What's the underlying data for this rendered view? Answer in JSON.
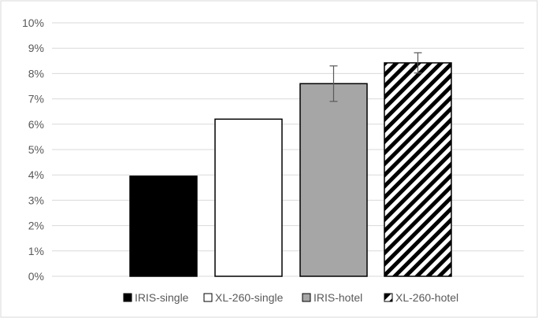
{
  "chart_data": {
    "type": "bar",
    "title": "",
    "xlabel": "",
    "ylabel": "",
    "ylim": [
      0,
      0.1
    ],
    "y_ticks": [
      0,
      0.01,
      0.02,
      0.03,
      0.04,
      0.05,
      0.06,
      0.07,
      0.08,
      0.09,
      0.1
    ],
    "y_tick_labels": [
      "0%",
      "1%",
      "2%",
      "3%",
      "4%",
      "5%",
      "6%",
      "7%",
      "8%",
      "9%",
      "10%"
    ],
    "grid": true,
    "legend_position": "bottom",
    "series": [
      {
        "name": "IRIS-single",
        "value": 0.0395,
        "error": null,
        "fill": "#000000",
        "pattern": "solid"
      },
      {
        "name": "XL-260-single",
        "value": 0.062,
        "error": null,
        "fill": "#ffffff",
        "pattern": "solid"
      },
      {
        "name": "IRIS-hotel",
        "value": 0.076,
        "error": 0.007,
        "fill": "#a6a6a6",
        "pattern": "solid"
      },
      {
        "name": "XL-260-hotel",
        "value": 0.0842,
        "error": 0.004,
        "fill": "#ffffff",
        "pattern": "diagonal-stripes"
      }
    ],
    "colors": {
      "gridline": "#d9d9d9",
      "bar_border": "#000000",
      "text": "#595959"
    }
  }
}
